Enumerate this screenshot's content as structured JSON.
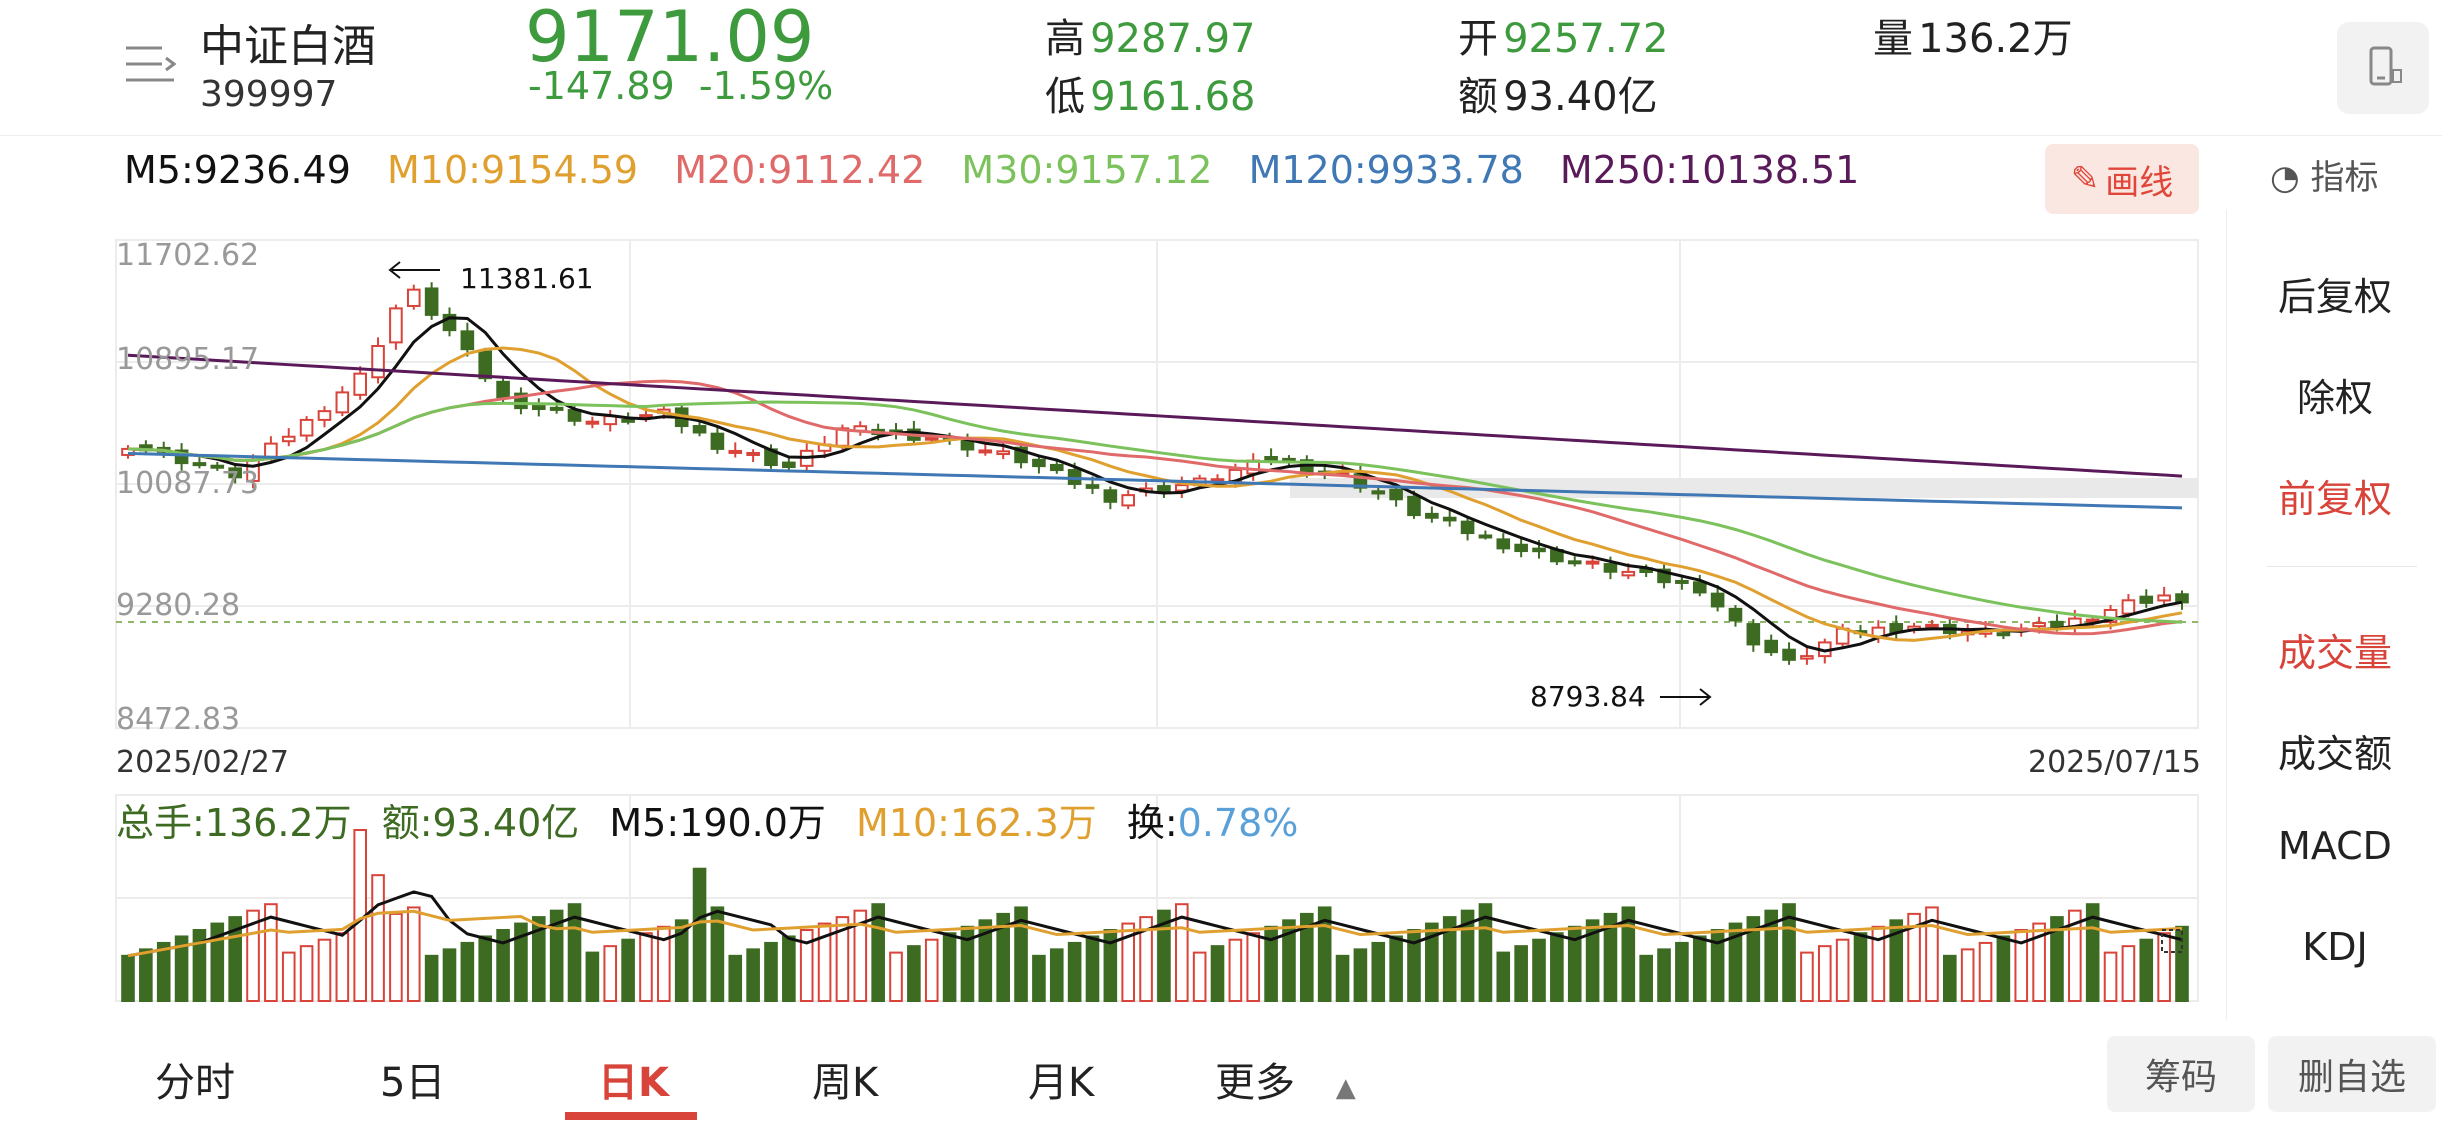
{
  "header": {
    "stock_name": "中证白酒",
    "stock_code": "399997",
    "price": "9171.09",
    "change_abs": "-147.89",
    "change_pct": "-1.59%",
    "high_label": "高",
    "high_value": "9287.97",
    "low_label": "低",
    "low_value": "9161.68",
    "open_label": "开",
    "open_value": "9257.72",
    "amount_label": "额",
    "amount_value": "93.40亿",
    "volume_label": "量",
    "volume_value": "136.2万"
  },
  "ma_row": {
    "m5": "M5:9236.49",
    "m10": "M10:9154.59",
    "m20": "M20:9112.42",
    "m30": "M30:9157.12",
    "m120": "M120:9933.78",
    "m250": "M250:10138.51"
  },
  "tools": {
    "draw_label": "画线",
    "indicator_label": "指标"
  },
  "price_axis": {
    "top": "11702.62",
    "mid_high": "10895.17",
    "mid": "10087.73",
    "mid_low": "9280.28",
    "bottom": "8472.83"
  },
  "annotations": {
    "high": "11381.61",
    "low": "8793.84"
  },
  "dates": {
    "start": "2025/02/27",
    "end": "2025/07/15"
  },
  "volume_info": {
    "total": "总手:136.2万",
    "amount": "额:93.40亿",
    "m5": "M5:190.0万",
    "m10": "M10:162.3万",
    "turnover_label": "换:",
    "turnover_value": "0.78%"
  },
  "side_panel": {
    "items": [
      "后复权",
      "除权",
      "前复权",
      "成交量",
      "成交额",
      "MACD",
      "KDJ"
    ]
  },
  "bottom_tabs": [
    "分时",
    "5日",
    "日K",
    "周K",
    "月K",
    "更多"
  ],
  "bottom_buttons": {
    "chips": "筹码",
    "remove_fav": "删自选"
  },
  "colors": {
    "up": "#d8433a",
    "down": "#3d6b22",
    "ma5": "#111111",
    "ma10": "#e0a030",
    "ma20": "#e06a6a",
    "ma30": "#7cc25c",
    "ma120": "#3f78b4",
    "ma250": "#5a1a5a"
  }
}
